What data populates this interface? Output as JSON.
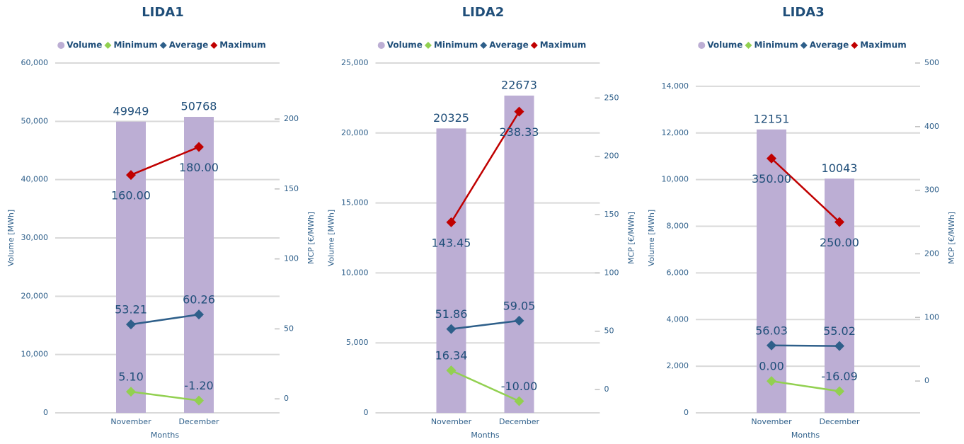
{
  "chart_data": [
    {
      "type": "bar",
      "title": "LIDA1",
      "xlabel": "Months",
      "ylabel": "Volume [MWh]",
      "y2label": "MCP [€/MWh]",
      "grid": true,
      "legend": "top",
      "categories": [
        "November",
        "December"
      ],
      "ylim": [
        0,
        60000
      ],
      "yticks": [
        0,
        {
          "value": 10000,
          "label": "10,000"
        },
        {
          "value": 20000,
          "label": "20,000"
        },
        {
          "value": 30000,
          "label": "30,000"
        },
        {
          "value": 40000,
          "label": "40,000"
        },
        {
          "value": 50000,
          "label": "50,000"
        },
        {
          "value": 60000,
          "label": "60,000"
        }
      ],
      "y2lim": [
        -10,
        240
      ],
      "y2ticks": [
        0,
        50,
        100,
        150,
        200
      ],
      "series": [
        {
          "name": "Volume",
          "type": "bar",
          "color": "#bcaed4",
          "values": [
            49949,
            50768
          ]
        },
        {
          "name": "Minimum",
          "type": "line",
          "axis": "y2",
          "color": "#92d050",
          "values": [
            5.1,
            -1.2
          ],
          "value_labels": [
            "5.10",
            "-1.20"
          ]
        },
        {
          "name": "Average",
          "type": "line",
          "axis": "y2",
          "color": "#2e5f8a",
          "values": [
            53.21,
            60.26
          ],
          "value_labels": [
            "53.21",
            "60.26"
          ]
        },
        {
          "name": "Maximum",
          "type": "line",
          "axis": "y2",
          "color": "#c00000",
          "values": [
            160,
            180
          ],
          "value_labels": [
            "160.00",
            "180.00"
          ]
        }
      ]
    },
    {
      "type": "bar",
      "title": "LIDA2",
      "xlabel": "Months",
      "ylabel": "Volume [MWh]",
      "y2label": "MCP [€/MWh]",
      "grid": true,
      "legend": "top",
      "categories": [
        "November",
        "December"
      ],
      "ylim": [
        0,
        25000
      ],
      "yticks": [
        0,
        {
          "value": 5000,
          "label": "5,000"
        },
        {
          "value": 10000,
          "label": "10,000"
        },
        {
          "value": 15000,
          "label": "15,000"
        },
        {
          "value": 20000,
          "label": "20,000"
        },
        {
          "value": 25000,
          "label": "25,000"
        }
      ],
      "y2lim": [
        -20,
        280
      ],
      "y2ticks": [
        0,
        50,
        100,
        150,
        200,
        250
      ],
      "series": [
        {
          "name": "Volume",
          "type": "bar",
          "color": "#bcaed4",
          "values": [
            20325,
            22673
          ]
        },
        {
          "name": "Minimum",
          "type": "line",
          "axis": "y2",
          "color": "#92d050",
          "values": [
            16.34,
            -10
          ],
          "value_labels": [
            "16.34",
            "-10.00"
          ]
        },
        {
          "name": "Average",
          "type": "line",
          "axis": "y2",
          "color": "#2e5f8a",
          "values": [
            51.86,
            59.05
          ],
          "value_labels": [
            "51.86",
            "59.05"
          ]
        },
        {
          "name": "Maximum",
          "type": "line",
          "axis": "y2",
          "color": "#c00000",
          "values": [
            143.45,
            238.33
          ],
          "value_labels": [
            "143.45",
            "238.33"
          ]
        }
      ]
    },
    {
      "type": "bar",
      "title": "LIDA3",
      "xlabel": "Months",
      "ylabel": "Volume [MWh]",
      "y2label": "MCP [€/MWh]",
      "grid": true,
      "legend": "top",
      "categories": [
        "November",
        "December"
      ],
      "ylim": [
        0,
        15000
      ],
      "yticks": [
        0,
        {
          "value": 2000,
          "label": "2,000"
        },
        {
          "value": 4000,
          "label": "4,000"
        },
        {
          "value": 6000,
          "label": "6,000"
        },
        {
          "value": 8000,
          "label": "8,000"
        },
        {
          "value": 10000,
          "label": "10,000"
        },
        {
          "value": 12000,
          "label": "12,000"
        },
        {
          "value": 14000,
          "label": "14,000"
        }
      ],
      "y2lim": [
        -50,
        500
      ],
      "y2ticks": [
        0,
        100,
        200,
        300,
        400,
        500
      ],
      "series": [
        {
          "name": "Volume",
          "type": "bar",
          "color": "#bcaed4",
          "values": [
            12151,
            10043
          ]
        },
        {
          "name": "Minimum",
          "type": "line",
          "axis": "y2",
          "color": "#92d050",
          "values": [
            0,
            -16.09
          ],
          "value_labels": [
            "0.00",
            "-16.09"
          ]
        },
        {
          "name": "Average",
          "type": "line",
          "axis": "y2",
          "color": "#2e5f8a",
          "values": [
            56.03,
            55.02
          ],
          "value_labels": [
            "56.03",
            "55.02"
          ]
        },
        {
          "name": "Maximum",
          "type": "line",
          "axis": "y2",
          "color": "#c00000",
          "values": [
            350,
            250
          ],
          "value_labels": [
            "350.00",
            "250.00"
          ]
        }
      ]
    }
  ]
}
